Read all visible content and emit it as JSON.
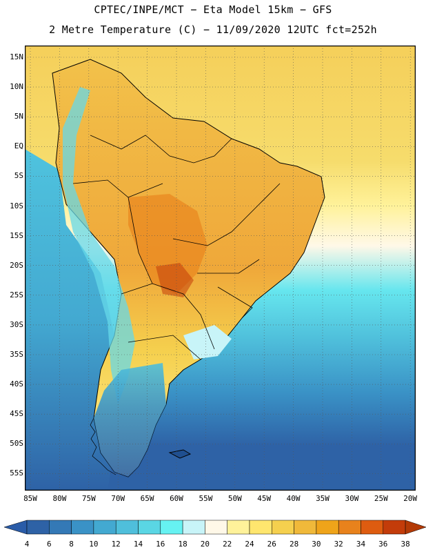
{
  "header": {
    "line1": "CPTEC/INPE/MCT −  Eta Model 15km − GFS",
    "line2": "2 Metre Temperature (C) − 11/09/2020 12UTC fct=252h"
  },
  "map": {
    "lat_labels": [
      "15N",
      "10N",
      "5N",
      "EQ",
      "5S",
      "10S",
      "15S",
      "20S",
      "25S",
      "30S",
      "35S",
      "40S",
      "45S",
      "50S",
      "55S"
    ],
    "lon_labels": [
      "85W",
      "80W",
      "75W",
      "70W",
      "65W",
      "60W",
      "55W",
      "50W",
      "45W",
      "40W",
      "35W",
      "30W",
      "25W",
      "20W"
    ],
    "gridlines": "dotted"
  },
  "colorbar": {
    "ticks": [
      "4",
      "6",
      "8",
      "10",
      "12",
      "14",
      "16",
      "18",
      "20",
      "22",
      "24",
      "26",
      "28",
      "30",
      "32",
      "34",
      "36",
      "38"
    ],
    "colors": [
      "#2e62a6",
      "#3479b6",
      "#3a92c6",
      "#43a9d1",
      "#4fbfdb",
      "#5ad6e4",
      "#66f2f2",
      "#c8f4f8",
      "#fff8e8",
      "#fff29a",
      "#ffe66e",
      "#f5d04e",
      "#f0b93a",
      "#efa41a",
      "#e8821c",
      "#de5c10",
      "#c33c0a"
    ],
    "low_color": "#2a5ca8",
    "high_color": "#b33a06"
  }
}
